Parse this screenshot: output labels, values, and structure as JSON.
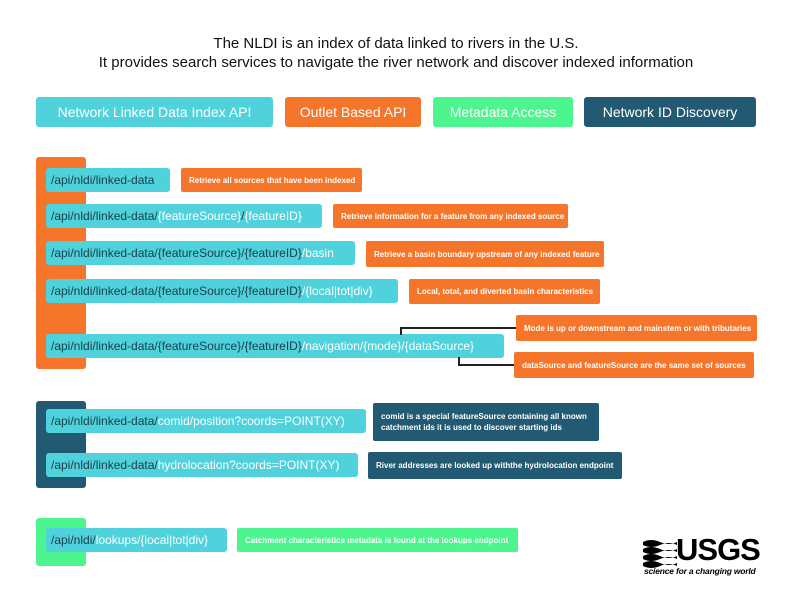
{
  "header": {
    "line1": "The NLDI is an index of data linked to rivers in the U.S.",
    "line2": "It provides search services to navigate the river network and discover indexed information"
  },
  "legend": {
    "network": "Network Linked Data Index API",
    "outlet": "Outlet Based API",
    "metadata": "Metadata Access",
    "network_id": "Network ID Discovery"
  },
  "colors": {
    "api": "#4fd2db",
    "outlet": "#f5762a",
    "metadata": "#4cf58e",
    "network_id": "#235a73"
  },
  "outlet_group": {
    "e1": {
      "base": "/api/nldi/linked-data",
      "note": "Retrieve all sources that have been indexed"
    },
    "e2": {
      "base": "/api/nldi/linked-data/",
      "v1": "{featureSource}",
      "s1": "/",
      "v2": "{featureID}",
      "note": "Retrieve information for a feature from any indexed source"
    },
    "e3": {
      "base": "/api/nldi/linked-data/",
      "v1": "{featureSource}",
      "s1": "/",
      "v2": "{featureID}",
      "s2": "/basin",
      "note": "Retrieve a basin boundary upstream of any indexed feature"
    },
    "e4": {
      "base": "/api/nldi/linked-data/",
      "v1": "{featureSource}",
      "s1": "/",
      "v2": "{featureID}",
      "s2": "/{local|tot|div}",
      "note": "Local, total, and diverted basin characteristics"
    },
    "e5": {
      "base": "/api/nldi/linked-data/",
      "v1": "{featureSource}",
      "s1": "/",
      "v2": "{featureID}",
      "s2": "/navigation/{mode}/{dataSource}",
      "note_a": "Mode is up or downstream and mainstem or with tributaries",
      "note_b": "dataSource and featureSource are the same set of sources"
    }
  },
  "network_group": {
    "e1": {
      "base": "/api/nldi/linked-data/",
      "v1": "comid/position?coords=POINT(XY)",
      "note_l1": "comid is a special featureSource containing all known",
      "note_l2": "catchment ids it is used to discover starting ids"
    },
    "e2": {
      "base": "/api/nldi/linked-data/",
      "v1": "hydrolocation?coords=POINT(XY)",
      "note": "River addresses are looked up withthe hydrolocation endpoint"
    }
  },
  "metadata_group": {
    "e1": {
      "base": "/api/nldi/",
      "v1": "lookups/{local|tot|div}",
      "note": "Catchment characteristics metadata is found at the lookups endpoint"
    }
  },
  "logo": {
    "name": "USGS",
    "tagline": "science for a changing world"
  }
}
